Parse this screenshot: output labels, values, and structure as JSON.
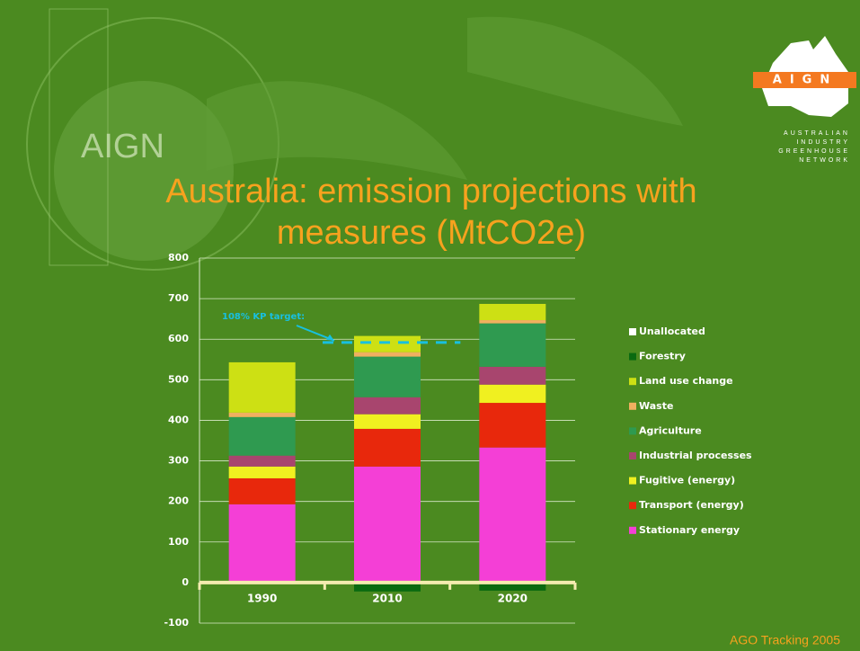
{
  "slide": {
    "watermark": "AIGN",
    "logo": "AIGN",
    "org_lines": [
      "AUSTRALIAN",
      "INDUSTRY",
      "GREENHOUSE",
      "NETWORK"
    ],
    "source": "AGO Tracking 2005"
  },
  "chart_data": {
    "type": "stacked-bar",
    "title": "Australia: emission projections with measures (MtCO2e)",
    "categories": [
      "1990",
      "2010",
      "2020"
    ],
    "series": [
      {
        "name": "Stationary energy",
        "color": "#f43fd6",
        "values": [
          193,
          286,
          333
        ]
      },
      {
        "name": "Transport (energy)",
        "color": "#e8280c",
        "values": [
          64,
          93,
          110
        ]
      },
      {
        "name": "Fugitive (energy)",
        "color": "#f0f020",
        "values": [
          29,
          36,
          45
        ]
      },
      {
        "name": "Industrial processes",
        "color": "#a8456e",
        "values": [
          27,
          42,
          44
        ]
      },
      {
        "name": "Agriculture",
        "color": "#2f9a50",
        "values": [
          95,
          100,
          107
        ]
      },
      {
        "name": "Waste",
        "color": "#f0b060",
        "values": [
          11,
          11,
          8
        ]
      },
      {
        "name": "Land use change",
        "color": "#cde014",
        "values": [
          124,
          40,
          40
        ]
      },
      {
        "name": "Forestry",
        "color": "#0a6a10",
        "values": [
          0,
          -22,
          -20
        ]
      },
      {
        "name": "Unallocated",
        "color": "#ffffff",
        "values": [
          0,
          0,
          0
        ]
      }
    ],
    "ylim": [
      -100,
      800
    ],
    "yticks": [
      -100,
      0,
      100,
      200,
      300,
      400,
      500,
      600,
      700,
      800
    ],
    "grid": true,
    "target": {
      "label": "108% KP target:",
      "value": 592,
      "color": "#18c0e0"
    }
  }
}
